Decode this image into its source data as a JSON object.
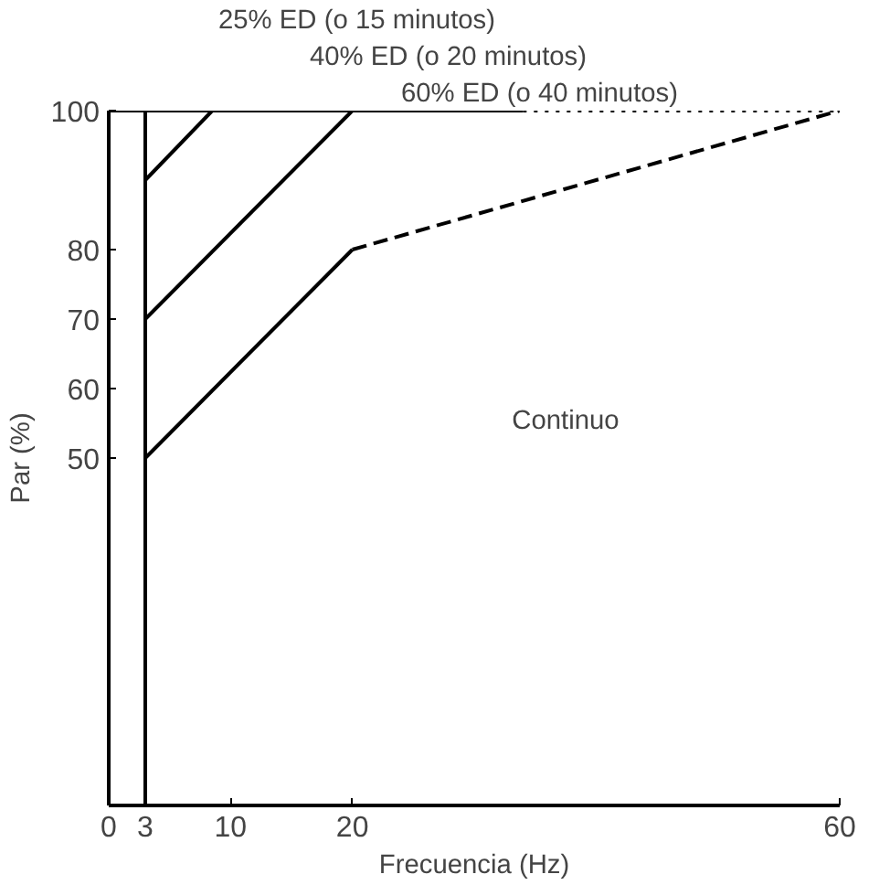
{
  "chart_data": {
    "type": "line",
    "xlabel": "Frecuencia (Hz)",
    "ylabel": "Par (%)",
    "xlim": [
      0,
      60
    ],
    "ylim": [
      0,
      100
    ],
    "xticks": [
      0,
      3,
      10,
      20,
      60
    ],
    "yticks": [
      50,
      60,
      70,
      80,
      100
    ],
    "grid": false,
    "marker": "none",
    "series": [
      {
        "color": "#000000",
        "x": [
          3,
          8.5
        ],
        "values": [
          90,
          100
        ],
        "line_style": "solid"
      },
      {
        "color": "#000000",
        "x": [
          3,
          20
        ],
        "values": [
          70,
          100
        ],
        "line_style": "solid"
      },
      {
        "color": "#000000",
        "x": [
          3,
          20
        ],
        "values": [
          50,
          80
        ],
        "line_style": "solid"
      },
      {
        "color": "#000000",
        "x": [
          20,
          60
        ],
        "values": [
          80,
          100
        ],
        "line_style": "dashed"
      },
      {
        "color": "#000000",
        "x": [
          0,
          34
        ],
        "values": [
          100,
          100
        ],
        "line_style": "solid"
      },
      {
        "color": "#000000",
        "x": [
          34,
          60
        ],
        "values": [
          100,
          100
        ],
        "line_style": "dotted"
      },
      {
        "color": "#000000",
        "x": [
          3,
          3
        ],
        "values": [
          0,
          100
        ],
        "line_style": "solid"
      }
    ],
    "annotations": [
      "25% ED (o 15 minutos)",
      "40% ED (o 20 minutos)",
      "60% ED (o 40 minutos)",
      "Continuo"
    ]
  }
}
